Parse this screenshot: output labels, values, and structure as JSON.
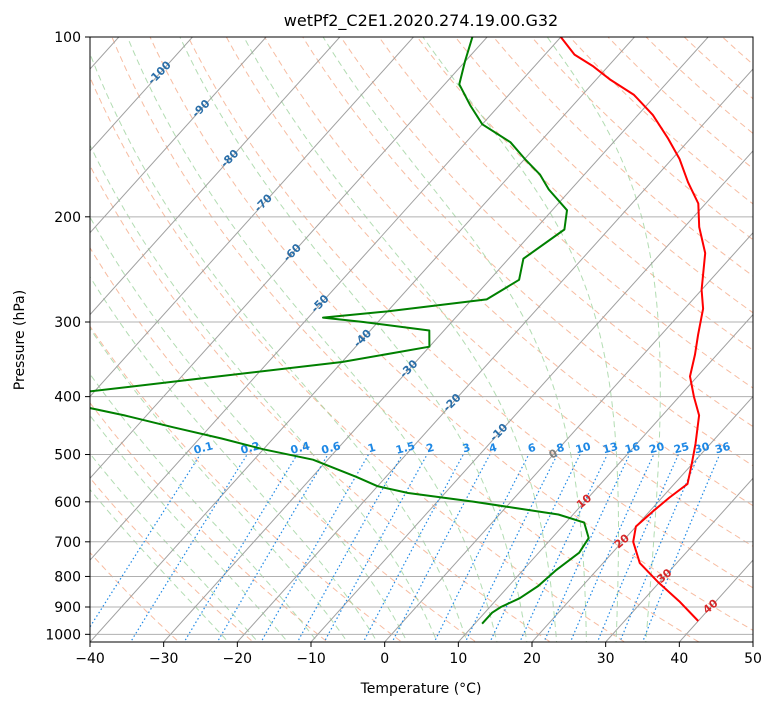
{
  "chart_data": {
    "type": "skew-t",
    "title": "wetPf2_C2E1.2020.274.19.00.G32",
    "xlabel": "Temperature (°C)",
    "ylabel": "Pressure (hPa)",
    "xlim": [
      -40,
      50
    ],
    "ylim": [
      1030,
      100
    ],
    "y_scale": "log",
    "x_ticks": [
      "−40",
      "−30",
      "−20",
      "−10",
      "0",
      "10",
      "20",
      "30",
      "40",
      "50"
    ],
    "x_tick_values": [
      -40,
      -30,
      -20,
      -10,
      0,
      10,
      20,
      30,
      40,
      50
    ],
    "y_ticks": [
      "1000",
      "900",
      "800",
      "700",
      "600",
      "500",
      "400",
      "300",
      "200",
      "100"
    ],
    "y_tick_values": [
      1000,
      900,
      800,
      700,
      600,
      500,
      400,
      300,
      200,
      100
    ],
    "grid": true,
    "colors": {
      "temperature": "#ff0000",
      "dewpoint": "#008000",
      "isotherm": "#a0a0a0",
      "dry_adiabat": "#f4a582",
      "moist_adiabat": "#9fd39f",
      "mixing_ratio": "#1e88e5",
      "isotherm_label": "#2a6ea8",
      "dry_label": "#d62728",
      "moist_zero_label": "#808080"
    },
    "isotherm_labels": [
      {
        "text": "-100",
        "T": -100,
        "p": 115
      },
      {
        "text": "-90",
        "T": -90,
        "p": 132
      },
      {
        "text": "-80",
        "T": -80,
        "p": 160
      },
      {
        "text": "-70",
        "T": -70,
        "p": 190
      },
      {
        "text": "-60",
        "T": -60,
        "p": 230
      },
      {
        "text": "-50",
        "T": -50,
        "p": 280
      },
      {
        "text": "-40",
        "T": -40,
        "p": 320
      },
      {
        "text": "-30",
        "T": -30,
        "p": 360
      },
      {
        "text": "-20",
        "T": -20,
        "p": 410
      },
      {
        "text": "-10",
        "T": -10,
        "p": 460
      }
    ],
    "mixing_ratio_values": [
      0.1,
      0.2,
      0.4,
      0.6,
      1,
      1.5,
      2,
      3,
      4,
      6,
      8,
      10,
      13,
      16,
      20,
      25,
      30,
      36
    ],
    "mixing_ratio_labels": [
      "0.1",
      "0.2",
      "0.4",
      "0.6",
      "1",
      "1.5",
      "2",
      "3",
      "4",
      "6",
      "8",
      "10",
      "13",
      "16",
      "20",
      "25",
      "30",
      "36"
    ],
    "dry_adiabat_labels": [
      {
        "text": "10",
        "T": 10,
        "p": 600
      },
      {
        "text": "20",
        "T": 20,
        "p": 700
      },
      {
        "text": "30",
        "T": 30,
        "p": 800
      },
      {
        "text": "40",
        "T": 40,
        "p": 900
      }
    ],
    "moist_zero_label": {
      "text": "0",
      "T": 0,
      "p": 500
    },
    "series": [
      {
        "key": "temperature",
        "points": [
          [
            40.0,
            950
          ],
          [
            35.0,
            880
          ],
          [
            30.0,
            820
          ],
          [
            25.0,
            760
          ],
          [
            21.5,
            700
          ],
          [
            20.0,
            660
          ],
          [
            20.5,
            620
          ],
          [
            21.0,
            590
          ],
          [
            21.8,
            560
          ],
          [
            20.0,
            520
          ],
          [
            18.0,
            480
          ],
          [
            15.0,
            430
          ],
          [
            12.0,
            400
          ],
          [
            9.0,
            370
          ],
          [
            7.0,
            340
          ],
          [
            5.0,
            315
          ],
          [
            2.5,
            285
          ],
          [
            0.0,
            265
          ],
          [
            -4.0,
            230
          ],
          [
            -8.0,
            208
          ],
          [
            -11.0,
            190
          ],
          [
            -15.0,
            175
          ],
          [
            -19.0,
            160
          ],
          [
            -23.0,
            148
          ],
          [
            -28.0,
            135
          ],
          [
            -33.0,
            125
          ],
          [
            -38.0,
            118
          ],
          [
            -42.0,
            112
          ],
          [
            -46.0,
            107
          ],
          [
            -50.0,
            100
          ]
        ]
      },
      {
        "key": "dewpoint",
        "points": [
          [
            11.0,
            960
          ],
          [
            11.0,
            920
          ],
          [
            11.5,
            900
          ],
          [
            13.0,
            870
          ],
          [
            14.0,
            830
          ],
          [
            14.5,
            780
          ],
          [
            15.5,
            730
          ],
          [
            15.0,
            690
          ],
          [
            12.5,
            650
          ],
          [
            8.0,
            630
          ],
          [
            -5.0,
            600
          ],
          [
            -15.0,
            580
          ],
          [
            -20.0,
            565
          ],
          [
            -24.0,
            545
          ],
          [
            -32.0,
            510
          ],
          [
            -40.0,
            490
          ],
          [
            -47.0,
            470
          ],
          [
            -55.0,
            450
          ],
          [
            -63.0,
            430
          ],
          [
            -70.0,
            415
          ],
          [
            -76.0,
            400
          ],
          [
            -55.0,
            370
          ],
          [
            -40.0,
            350
          ],
          [
            -30.0,
            330
          ],
          [
            -32.0,
            310
          ],
          [
            -42.0,
            300
          ],
          [
            -48.0,
            295
          ],
          [
            -40.0,
            288
          ],
          [
            -28.0,
            275
          ],
          [
            -26.0,
            255
          ],
          [
            -28.0,
            235
          ],
          [
            -26.0,
            210
          ],
          [
            -28.0,
            195
          ],
          [
            -33.0,
            180
          ],
          [
            -36.0,
            170
          ],
          [
            -40.0,
            160
          ],
          [
            -44.0,
            150
          ],
          [
            -50.0,
            140
          ],
          [
            -54.0,
            130
          ],
          [
            -58.0,
            120
          ],
          [
            -60.0,
            110
          ],
          [
            -62.0,
            100
          ]
        ]
      }
    ]
  }
}
